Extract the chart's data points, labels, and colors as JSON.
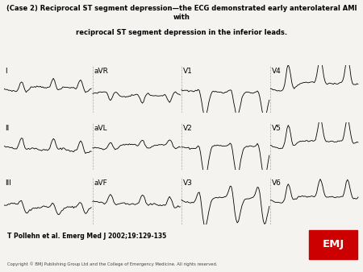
{
  "title_line1": "(Case 2) Reciprocal ST segment depression—the ECG demonstrated early anterolateral AMI with",
  "title_line2": "reciprocal ST segment depression in the inferior leads.",
  "author_line": "T Pollehn et al. Emerg Med J 2002;19:129-135",
  "copyright_line": "Copyright © BMJ Publishing Group Ltd and the College of Emergency Medicine. All rights reserved.",
  "emj_text": "EMJ",
  "emj_bg": "#cc0000",
  "emj_fg": "#ffffff",
  "bg_color": "#f5f3f0",
  "lead_names_row0": [
    "I",
    "aVR",
    "V1",
    "V4"
  ],
  "lead_names_row1": [
    "II",
    "aVL",
    "V2",
    "V5"
  ],
  "lead_names_row2": [
    "III",
    "aVF",
    "V3",
    "V6"
  ]
}
